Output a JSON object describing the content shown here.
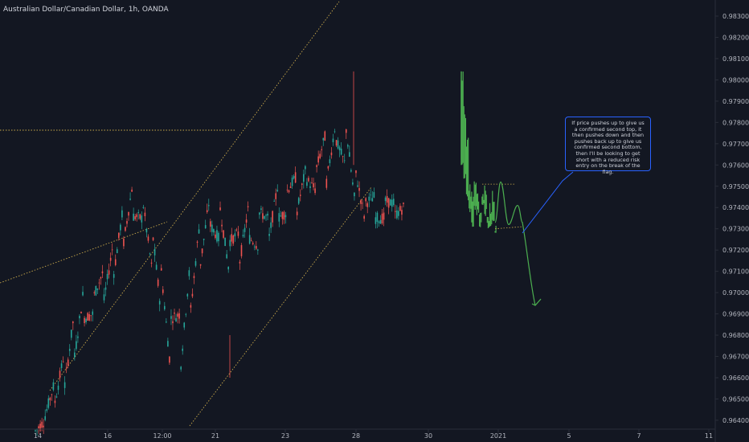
{
  "header": {
    "title": "Australian Dollar/Canadian Dollar, 1h, OANDA"
  },
  "note": {
    "text": "If price pushes up to give us a confirmed second top, it then pushes down and then pushes back up to give us confirmed second bottom, then I'll be looking to get short with a reduced risk entry on the break of the flag."
  },
  "colors": {
    "background": "#131722",
    "up": "#26a69a",
    "down": "#ef5350",
    "projection": "#4caf50",
    "trendline": "#c9a94b",
    "note_border": "#2962ff"
  },
  "chart_data": {
    "type": "candlestick",
    "title": "Australian Dollar/Canadian Dollar, 1h, OANDA",
    "x_ticks": [
      "14",
      "16",
      "12:00",
      "21",
      "23",
      "28",
      "30",
      "2021",
      "5",
      "7",
      "11"
    ],
    "y_ticks": [
      "0.98300",
      "0.98200",
      "0.98100",
      "0.98000",
      "0.97900",
      "0.97800",
      "0.97700",
      "0.97600",
      "0.97500",
      "0.97400",
      "0.97300",
      "0.97200",
      "0.97100",
      "0.97000",
      "0.96900",
      "0.96800",
      "0.96700",
      "0.96600",
      "0.96500",
      "0.96400"
    ],
    "ylim": [
      0.9637,
      0.9832
    ],
    "grid": false,
    "price_path": [
      [
        0.9635,
        0.9648
      ],
      [
        0.9642,
        0.964
      ],
      [
        0.9648,
        0.9658
      ],
      [
        0.9655,
        0.9672
      ],
      [
        0.9668,
        0.969
      ],
      [
        0.9688,
        0.9702
      ],
      [
        0.9698,
        0.969
      ],
      [
        0.9694,
        0.971
      ],
      [
        0.9706,
        0.9722
      ],
      [
        0.972,
        0.9738
      ],
      [
        0.9736,
        0.975
      ],
      [
        0.9746,
        0.9735
      ],
      [
        0.9732,
        0.9712
      ],
      [
        0.971,
        0.969
      ],
      [
        0.9688,
        0.9662
      ],
      [
        0.9665,
        0.969
      ],
      [
        0.969,
        0.9715
      ],
      [
        0.9712,
        0.9735
      ],
      [
        0.9732,
        0.9745
      ],
      [
        0.9742,
        0.9725
      ],
      [
        0.9724,
        0.971
      ],
      [
        0.9712,
        0.9728
      ],
      [
        0.9726,
        0.974
      ],
      [
        0.9738,
        0.9722
      ],
      [
        0.9722,
        0.9735
      ],
      [
        0.9735,
        0.975
      ],
      [
        0.9748,
        0.9738
      ],
      [
        0.9738,
        0.9755
      ],
      [
        0.9753,
        0.976
      ],
      [
        0.9758,
        0.9748
      ],
      [
        0.975,
        0.9775
      ],
      [
        0.9772,
        0.978
      ],
      [
        0.978,
        0.976
      ],
      [
        0.9758,
        0.9742
      ],
      [
        0.9742,
        0.9735
      ],
      [
        0.9735,
        0.9745
      ],
      [
        0.9743,
        0.9735
      ],
      [
        0.9736,
        0.9742
      ],
      [
        0.9742,
        0.974
      ]
    ],
    "projection_points": [
      [
        0.9802,
        0.9762
      ],
      [
        0.9785,
        0.9755
      ],
      [
        0.977,
        0.9745
      ],
      [
        0.9748,
        0.9738
      ],
      [
        0.9745,
        0.9732
      ],
      [
        0.975,
        0.974
      ],
      [
        0.9745,
        0.9738
      ],
      [
        0.9735,
        0.9732
      ],
      [
        0.9742,
        0.9745
      ],
      [
        0.9748,
        0.9738
      ],
      [
        0.9735,
        0.9732
      ],
      [
        0.974,
        0.9732
      ],
      [
        0.9745,
        0.9735
      ],
      [
        0.973,
        0.973
      ]
    ],
    "projection_path_y": [
      0.9733,
      0.9752,
      0.9732,
      0.9741,
      0.9733,
      0.97,
      0.9694
    ]
  }
}
